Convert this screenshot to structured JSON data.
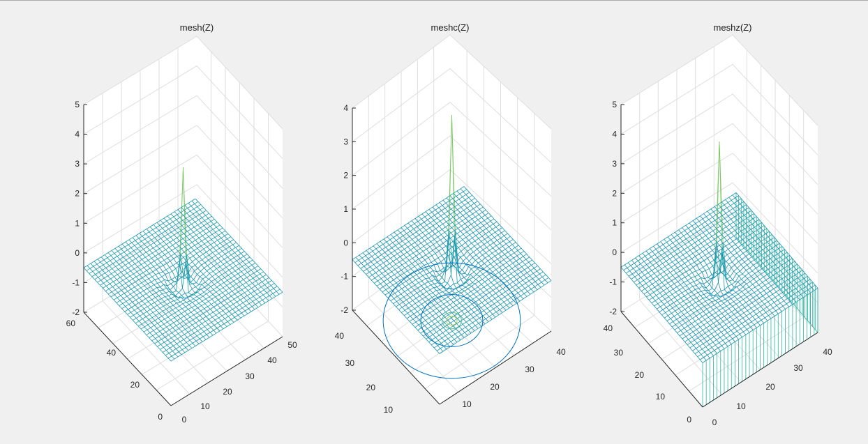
{
  "figure": {
    "background": "#f0f0f0"
  },
  "colors": {
    "mesh_low": "#0072bd",
    "mesh_mid": "#2bb5a0",
    "mesh_high": "#f2e41e",
    "axis": "#262626",
    "grid": "#dedede"
  },
  "chart_data": [
    {
      "type": "surface",
      "title": "mesh(Z)",
      "plot": "mesh",
      "xlim": [
        0,
        50
      ],
      "ylim": [
        0,
        60
      ],
      "zlim": [
        -2,
        5
      ],
      "x_ticks": [
        "0",
        "10",
        "20",
        "30",
        "40",
        "50"
      ],
      "y_ticks": [
        "0",
        "20",
        "40",
        "60"
      ],
      "z_ticks": [
        "-2",
        "-1",
        "0",
        "1",
        "2",
        "3",
        "4",
        "5"
      ],
      "grid": "on",
      "surface": {
        "grid_size": [
          33,
          33
        ],
        "x_range": [
          1,
          33
        ],
        "y_range": [
          1,
          33
        ],
        "baseline": -0.5,
        "peak": 3.3
      }
    },
    {
      "type": "surface",
      "title": "meshc(Z)",
      "plot": "meshc",
      "xlim": [
        0,
        40
      ],
      "ylim": [
        0,
        40
      ],
      "zlim": [
        -2,
        4
      ],
      "x_ticks": [
        "10",
        "20",
        "30",
        "40"
      ],
      "y_ticks": [
        "10",
        "20",
        "30",
        "40"
      ],
      "z_ticks": [
        "-2",
        "-1",
        "0",
        "1",
        "2",
        "3",
        "4"
      ],
      "grid": "on",
      "surface": {
        "grid_size": [
          33,
          33
        ],
        "x_range": [
          1,
          33
        ],
        "y_range": [
          1,
          33
        ],
        "baseline": -0.5,
        "peak": 4.1
      }
    },
    {
      "type": "surface",
      "title": "meshz(Z)",
      "plot": "meshz",
      "xlim": [
        0,
        40
      ],
      "ylim": [
        0,
        40
      ],
      "zlim": [
        -2,
        5
      ],
      "x_ticks": [
        "0",
        "10",
        "20",
        "30",
        "40"
      ],
      "y_ticks": [
        "0",
        "10",
        "20",
        "30",
        "40"
      ],
      "z_ticks": [
        "-2",
        "-1",
        "0",
        "1",
        "2",
        "3",
        "4",
        "5"
      ],
      "grid": "on",
      "surface": {
        "grid_size": [
          33,
          33
        ],
        "x_range": [
          1,
          33
        ],
        "y_range": [
          1,
          33
        ],
        "baseline": -0.5,
        "peak": 4.1
      }
    }
  ]
}
